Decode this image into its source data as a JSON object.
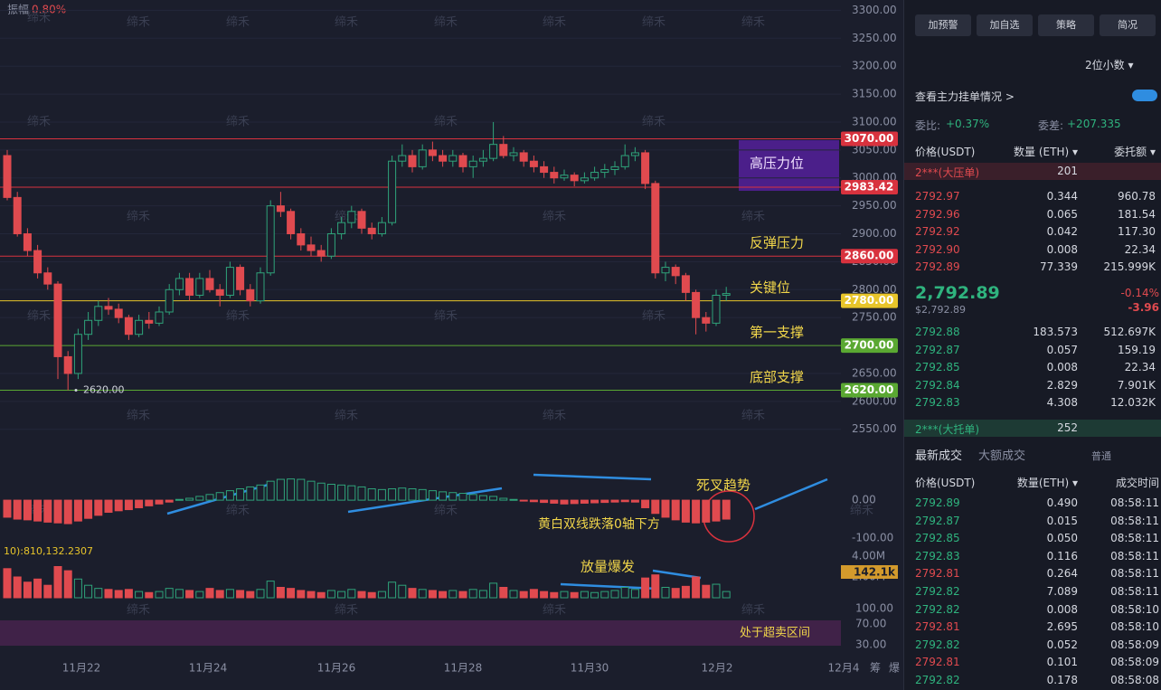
{
  "chart": {
    "amplitude_label": "振幅",
    "amplitude": "0.80%",
    "ylim": [
      2535,
      3312
    ],
    "yticks": [
      {
        "value": 3300,
        "label": "3300.00"
      },
      {
        "value": 3250,
        "label": "3250.00"
      },
      {
        "value": 3200,
        "label": "3200.00"
      },
      {
        "value": 3150,
        "label": "3150.00"
      },
      {
        "value": 3100,
        "label": "3100.00"
      },
      {
        "value": 3050,
        "label": "3050.00"
      },
      {
        "value": 3000,
        "label": "3000.00"
      },
      {
        "value": 2950,
        "label": "2950.00"
      },
      {
        "value": 2900,
        "label": "2900.00"
      },
      {
        "value": 2850,
        "label": "2850.00"
      },
      {
        "value": 2800,
        "label": "2800.00"
      },
      {
        "value": 2750,
        "label": "2750.00"
      },
      {
        "value": 2700,
        "label": "2700.00"
      },
      {
        "value": 2650,
        "label": "2650.00"
      },
      {
        "value": 2600,
        "label": "2600.00"
      },
      {
        "value": 2550,
        "label": "2550.00"
      }
    ],
    "levels": [
      {
        "value": 3070,
        "label": "3070.00",
        "color": "#d8323e",
        "note": "高压力位"
      },
      {
        "value": 2983.42,
        "label": "2983.42",
        "color": "#d8323e"
      },
      {
        "value": 2860,
        "label": "2860.00",
        "color": "#d8323e",
        "note": "反弹压力"
      },
      {
        "value": 2780,
        "label": "2780.00",
        "color": "#e8c52a",
        "note": "关键位"
      },
      {
        "value": 2700,
        "label": "2700.00",
        "color": "#5aa832",
        "note": "第一支撑"
      },
      {
        "value": 2620,
        "label": "2620.00",
        "color": "#5aa832",
        "note": "底部支撑"
      }
    ],
    "low_marker": {
      "value": 2620,
      "label": "2620.00"
    },
    "x_labels": [
      "11月22",
      "11月24",
      "11月26",
      "11月28",
      "11月30",
      "12月2",
      "12月4"
    ],
    "side_labels": [
      "筹",
      "爆"
    ],
    "watermark": "缔禾",
    "up_color": "#2fa37a",
    "down_color": "#e04a4f",
    "candles": [
      [
        3040,
        3050,
        2960,
        2965
      ],
      [
        2965,
        2975,
        2895,
        2900
      ],
      [
        2900,
        2910,
        2860,
        2870
      ],
      [
        2870,
        2880,
        2820,
        2830
      ],
      [
        2830,
        2840,
        2800,
        2810
      ],
      [
        2810,
        2815,
        2640,
        2680
      ],
      [
        2680,
        2690,
        2620,
        2650
      ],
      [
        2650,
        2730,
        2640,
        2720
      ],
      [
        2720,
        2760,
        2710,
        2745
      ],
      [
        2745,
        2780,
        2735,
        2770
      ],
      [
        2770,
        2785,
        2755,
        2765
      ],
      [
        2765,
        2775,
        2740,
        2750
      ],
      [
        2750,
        2755,
        2710,
        2720
      ],
      [
        2720,
        2755,
        2715,
        2745
      ],
      [
        2745,
        2760,
        2730,
        2740
      ],
      [
        2740,
        2770,
        2735,
        2760
      ],
      [
        2760,
        2810,
        2755,
        2800
      ],
      [
        2800,
        2830,
        2790,
        2820
      ],
      [
        2820,
        2830,
        2780,
        2790
      ],
      [
        2790,
        2830,
        2785,
        2820
      ],
      [
        2820,
        2835,
        2795,
        2800
      ],
      [
        2800,
        2810,
        2770,
        2790
      ],
      [
        2790,
        2850,
        2785,
        2840
      ],
      [
        2840,
        2845,
        2790,
        2800
      ],
      [
        2800,
        2810,
        2770,
        2780
      ],
      [
        2780,
        2840,
        2775,
        2830
      ],
      [
        2830,
        2960,
        2825,
        2950
      ],
      [
        2950,
        2975,
        2930,
        2940
      ],
      [
        2940,
        2945,
        2890,
        2900
      ],
      [
        2900,
        2910,
        2870,
        2880
      ],
      [
        2880,
        2895,
        2860,
        2870
      ],
      [
        2870,
        2880,
        2850,
        2860
      ],
      [
        2860,
        2910,
        2855,
        2900
      ],
      [
        2900,
        2930,
        2890,
        2920
      ],
      [
        2920,
        2950,
        2910,
        2940
      ],
      [
        2940,
        2945,
        2900,
        2910
      ],
      [
        2910,
        2920,
        2890,
        2900
      ],
      [
        2900,
        2930,
        2895,
        2920
      ],
      [
        2920,
        3040,
        2915,
        3030
      ],
      [
        3030,
        3060,
        3020,
        3040
      ],
      [
        3040,
        3050,
        3010,
        3020
      ],
      [
        3020,
        3060,
        3015,
        3050
      ],
      [
        3050,
        3065,
        3030,
        3040
      ],
      [
        3040,
        3050,
        3020,
        3030
      ],
      [
        3030,
        3050,
        3020,
        3040
      ],
      [
        3040,
        3045,
        3010,
        3020
      ],
      [
        3020,
        3040,
        3000,
        3030
      ],
      [
        3030,
        3050,
        3020,
        3035
      ],
      [
        3035,
        3100,
        3030,
        3060
      ],
      [
        3060,
        3075,
        3035,
        3040
      ],
      [
        3040,
        3055,
        3030,
        3045
      ],
      [
        3045,
        3050,
        3020,
        3030
      ],
      [
        3030,
        3040,
        3010,
        3020
      ],
      [
        3020,
        3030,
        3000,
        3010
      ],
      [
        3010,
        3020,
        2990,
        3000
      ],
      [
        3000,
        3015,
        2995,
        3005
      ],
      [
        3005,
        3010,
        2985,
        2995
      ],
      [
        2995,
        3010,
        2990,
        3000
      ],
      [
        3000,
        3020,
        2995,
        3010
      ],
      [
        3010,
        3025,
        3000,
        3015
      ],
      [
        3015,
        3030,
        3005,
        3020
      ],
      [
        3020,
        3060,
        3015,
        3040
      ],
      [
        3040,
        3055,
        3030,
        3045
      ],
      [
        3045,
        3050,
        2980,
        2990
      ],
      [
        2990,
        2995,
        2820,
        2830
      ],
      [
        2830,
        2850,
        2815,
        2840
      ],
      [
        2840,
        2845,
        2810,
        2825
      ],
      [
        2825,
        2830,
        2780,
        2795
      ],
      [
        2795,
        2800,
        2720,
        2750
      ],
      [
        2750,
        2760,
        2725,
        2740
      ],
      [
        2740,
        2800,
        2735,
        2790
      ],
      [
        2790,
        2805,
        2780,
        2793
      ]
    ],
    "macd": {
      "ylim": [
        -112,
        79
      ],
      "yticks": [
        {
          "value": 0,
          "label": "0.00"
        },
        {
          "value": -100,
          "label": "-100.00"
        }
      ],
      "values": [
        -45,
        -50,
        -52,
        -55,
        -58,
        -60,
        -62,
        -55,
        -48,
        -40,
        -32,
        -28,
        -25,
        -20,
        -15,
        -10,
        -5,
        2,
        5,
        10,
        15,
        20,
        25,
        30,
        35,
        40,
        50,
        55,
        56,
        55,
        50,
        45,
        42,
        40,
        38,
        35,
        30,
        28,
        30,
        32,
        30,
        28,
        25,
        22,
        20,
        18,
        15,
        12,
        10,
        5,
        2,
        -2,
        -4,
        -6,
        -8,
        -10,
        -9,
        -8,
        -7,
        -6,
        -5,
        -4,
        -5,
        -20,
        -35,
        -45,
        -52,
        -58,
        -60,
        -58,
        -55,
        -50
      ],
      "notes": [
        "死叉趋势",
        "黄白双线跌落0轴下方"
      ]
    },
    "volume": {
      "ylim": [
        0,
        4.87
      ],
      "yticks": [
        {
          "value": 4,
          "label": "4.00M"
        },
        {
          "value": 2,
          "label": "2.00M"
        }
      ],
      "legend": "10):810,132.2307",
      "current": "142.1k",
      "note": "放量爆发",
      "values": [
        2.8,
        2.0,
        1.5,
        1.8,
        1.2,
        3.0,
        2.6,
        1.8,
        1.2,
        0.9,
        0.8,
        0.7,
        0.8,
        0.6,
        0.5,
        0.6,
        0.9,
        0.8,
        0.7,
        0.6,
        0.9,
        0.7,
        0.8,
        0.7,
        0.6,
        0.8,
        1.6,
        1.0,
        0.9,
        0.7,
        0.6,
        0.5,
        0.7,
        0.6,
        0.8,
        0.6,
        0.5,
        0.6,
        1.5,
        1.2,
        0.9,
        0.8,
        0.7,
        0.6,
        0.7,
        0.6,
        0.8,
        0.7,
        1.4,
        1.0,
        0.7,
        0.6,
        0.8,
        0.6,
        0.5,
        0.6,
        0.5,
        0.6,
        0.5,
        0.6,
        0.7,
        1.0,
        0.8,
        1.9,
        2.2,
        1.0,
        0.9,
        1.1,
        2.0,
        1.2,
        1.3,
        0.6
      ]
    },
    "rsi": {
      "ylim": [
        0,
        100
      ],
      "yticks": [
        {
          "value": 100,
          "label": "100.00"
        },
        {
          "value": 70,
          "label": "70.00"
        },
        {
          "value": 30,
          "label": "30.00"
        }
      ],
      "note": "处于超卖区间"
    }
  },
  "panel": {
    "buttons": [
      "加预警",
      "加自选",
      "策略",
      "简况"
    ],
    "decimals": "2位小数 ▾",
    "main_orders": "查看主力挂单情况 >",
    "ratio_label": "委比:",
    "ratio": "+0.37%",
    "diff_label": "委差:",
    "diff": "+207.335",
    "book_headers": [
      "价格(USDT)",
      "数量 (ETH) ▾",
      "委托额 ▾"
    ],
    "big_ask": {
      "label": "2***(大压单)",
      "qty": "201"
    },
    "asks": [
      [
        "2792.97",
        "0.344",
        "960.78"
      ],
      [
        "2792.96",
        "0.065",
        "181.54"
      ],
      [
        "2792.92",
        "0.042",
        "117.30"
      ],
      [
        "2792.90",
        "0.008",
        "22.34"
      ],
      [
        "2792.89",
        "77.339",
        "215.999K"
      ]
    ],
    "last_price": "2,792.89",
    "last_usd": "$2,792.89",
    "change_pct": "-0.14%",
    "change": "-3.96",
    "bids": [
      [
        "2792.88",
        "183.573",
        "512.697K"
      ],
      [
        "2792.87",
        "0.057",
        "159.19"
      ],
      [
        "2792.85",
        "0.008",
        "22.34"
      ],
      [
        "2792.84",
        "2.829",
        "7.901K"
      ],
      [
        "2792.83",
        "4.308",
        "12.032K"
      ]
    ],
    "big_bid": {
      "label": "2***(大托单)",
      "qty": "252"
    },
    "tabs": [
      "最新成交",
      "大额成交"
    ],
    "normal": "普通",
    "trade_headers": [
      "价格(USDT)",
      "数量(ETH) ▾",
      "成交时间"
    ],
    "trades": [
      {
        "price": "2792.89",
        "qty": "0.490",
        "time": "08:58:11",
        "side": "buy"
      },
      {
        "price": "2792.87",
        "qty": "0.015",
        "time": "08:58:11",
        "side": "buy"
      },
      {
        "price": "2792.85",
        "qty": "0.050",
        "time": "08:58:11",
        "side": "buy"
      },
      {
        "price": "2792.83",
        "qty": "0.116",
        "time": "08:58:11",
        "side": "buy"
      },
      {
        "price": "2792.81",
        "qty": "0.264",
        "time": "08:58:11",
        "side": "sell"
      },
      {
        "price": "2792.82",
        "qty": "7.089",
        "time": "08:58:11",
        "side": "buy"
      },
      {
        "price": "2792.82",
        "qty": "0.008",
        "time": "08:58:10",
        "side": "buy"
      },
      {
        "price": "2792.81",
        "qty": "2.695",
        "time": "08:58:10",
        "side": "sell"
      },
      {
        "price": "2792.82",
        "qty": "0.052",
        "time": "08:58:09",
        "side": "buy"
      },
      {
        "price": "2792.81",
        "qty": "0.101",
        "time": "08:58:09",
        "side": "sell"
      },
      {
        "price": "2792.82",
        "qty": "0.178",
        "time": "08:58:08",
        "side": "buy"
      }
    ]
  }
}
